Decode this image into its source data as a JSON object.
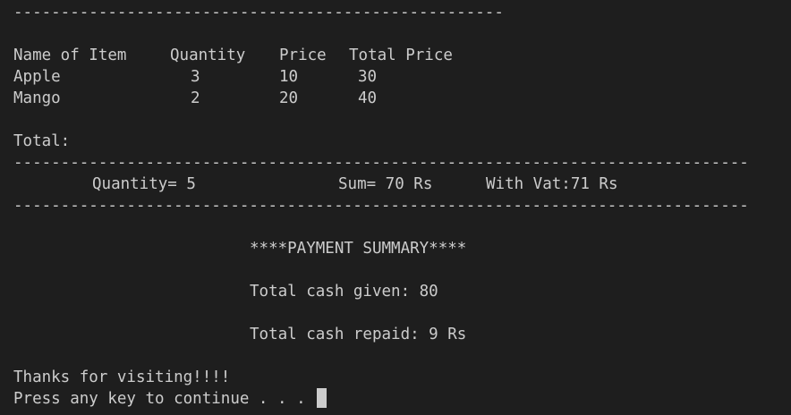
{
  "terminal": {
    "top_rule": "----------------------------------------------------",
    "table": {
      "headers": [
        "Name of Item",
        "Quantity",
        "Price",
        "Total Price"
      ],
      "rows": [
        [
          "Apple",
          "3",
          "10",
          "30"
        ],
        [
          "Mango",
          "2",
          "20",
          "40"
        ]
      ]
    },
    "total_label": "Total:",
    "divider": "------------------------------------------------------------------------------",
    "totals": {
      "quantity": "Quantity= 5",
      "sum": "Sum= 70 Rs",
      "vat": "With Vat:71 Rs"
    },
    "payment": {
      "title": "****PAYMENT SUMMARY****",
      "cash_given": "Total cash given: 80",
      "cash_repaid": "Total cash repaid: 9 Rs"
    },
    "thanks": "Thanks for visiting!!!!",
    "prompt": "Press any key to continue . . . "
  }
}
